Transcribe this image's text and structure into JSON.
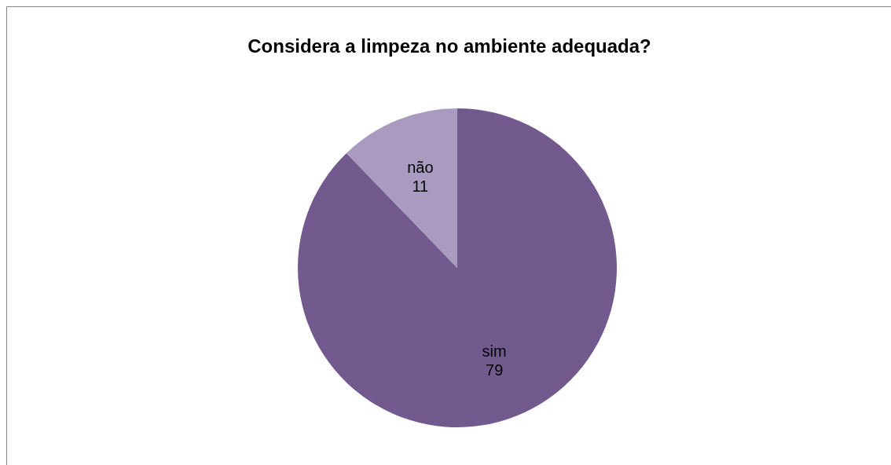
{
  "chart_data": {
    "type": "pie",
    "title": "Considera a limpeza no ambiente adequada?",
    "categories": [
      "sim",
      "não"
    ],
    "values": [
      79,
      11
    ],
    "colors": [
      "#72598e",
      "#a99bbf"
    ],
    "data_labels": true,
    "legend": false
  }
}
